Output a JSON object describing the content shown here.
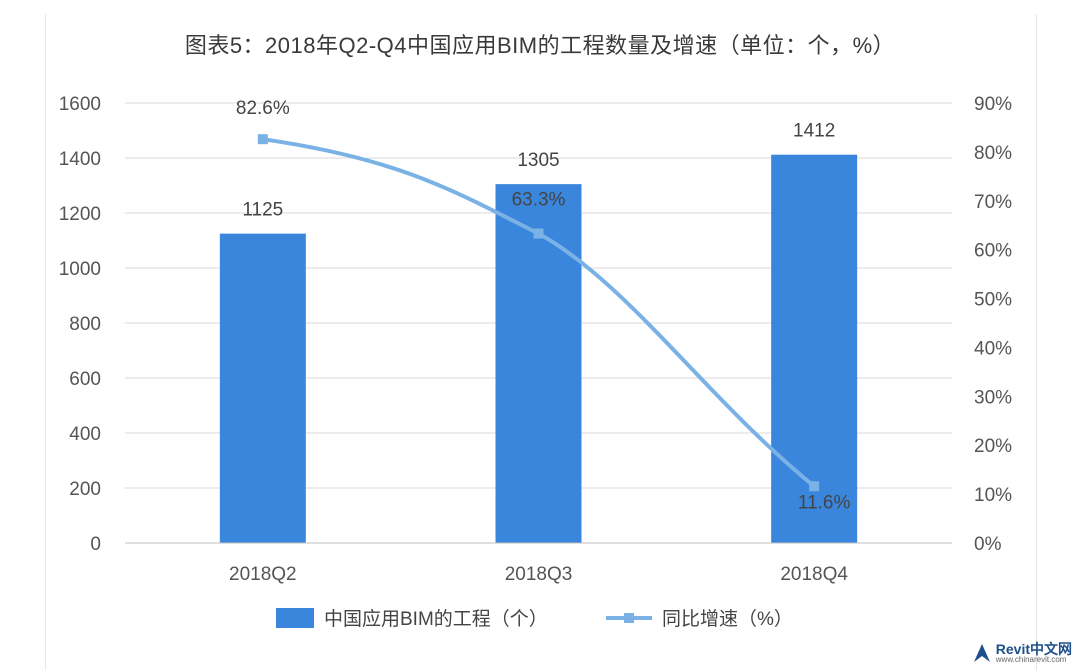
{
  "chart_data": {
    "type": "bar",
    "title": "图表5：2018年Q2-Q4中国应用BIM的工程数量及增速（单位：个，%）",
    "categories": [
      "2018Q2",
      "2018Q3",
      "2018Q4"
    ],
    "series": [
      {
        "name": "中国应用BIM的工程（个）",
        "type": "bar",
        "axis": "left",
        "values": [
          1125,
          1305,
          1412
        ],
        "labels": [
          "1125",
          "1305",
          "1412"
        ],
        "color": "#3a86dc"
      },
      {
        "name": "同比增速（%）",
        "type": "line",
        "axis": "right",
        "values": [
          82.6,
          63.3,
          11.6
        ],
        "labels": [
          "82.6%",
          "63.3%",
          "11.6%"
        ],
        "color": "#7ab2e6"
      }
    ],
    "y_left": {
      "min": 0,
      "max": 1600,
      "ticks": [
        "0",
        "200",
        "400",
        "600",
        "800",
        "1000",
        "1200",
        "1400",
        "1600"
      ]
    },
    "y_right": {
      "min": 0,
      "max": 90,
      "ticks": [
        "0%",
        "10%",
        "20%",
        "30%",
        "40%",
        "50%",
        "60%",
        "70%",
        "80%",
        "90%"
      ]
    },
    "grid": true,
    "legend_position": "bottom"
  },
  "watermark": {
    "brand": "Revit中文网",
    "url": "www.chinarevit.com"
  }
}
